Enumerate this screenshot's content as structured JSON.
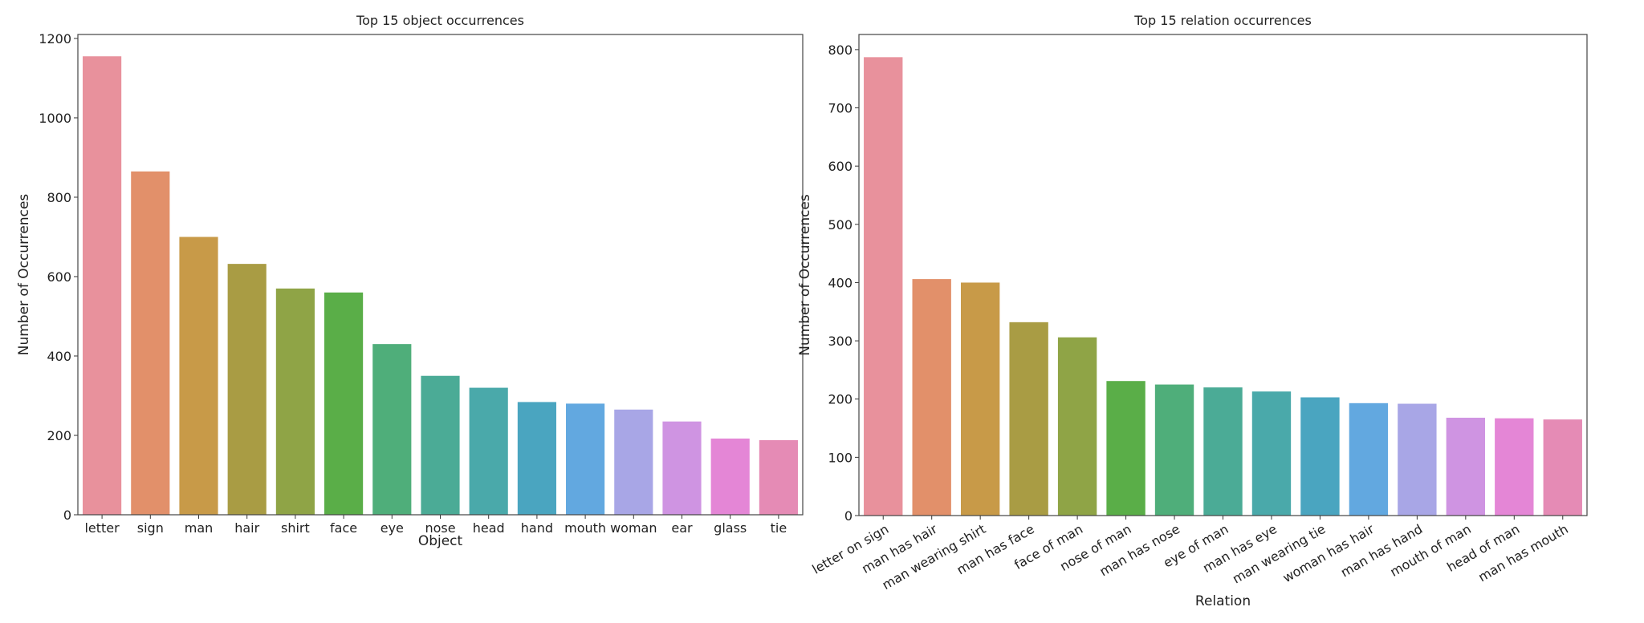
{
  "chart_data": [
    {
      "type": "bar",
      "title": "Top 15 object occurrences",
      "xlabel": "Object",
      "ylabel": "Number of Occurrences",
      "ylim": [
        0,
        1210
      ],
      "yticks": [
        0,
        200,
        400,
        600,
        800,
        1000,
        1200
      ],
      "grid": false,
      "categories": [
        "letter",
        "sign",
        "man",
        "hair",
        "shirt",
        "face",
        "eye",
        "nose",
        "head",
        "hand",
        "mouth",
        "woman",
        "ear",
        "glass",
        "tie"
      ],
      "values": [
        1155,
        865,
        700,
        632,
        570,
        560,
        430,
        350,
        320,
        284,
        280,
        265,
        235,
        192,
        188
      ],
      "label_rotation": 0
    },
    {
      "type": "bar",
      "title": "Top 15 relation occurrences",
      "xlabel": "Relation",
      "ylabel": "Number of Occurrences",
      "ylim": [
        0,
        826
      ],
      "yticks": [
        0,
        100,
        200,
        300,
        400,
        500,
        600,
        700,
        800
      ],
      "grid": false,
      "categories": [
        "letter on sign",
        "man has hair",
        "man wearing shirt",
        "man has face",
        "face of man",
        "nose of man",
        "man has nose",
        "eye of man",
        "man has eye",
        "man wearing tie",
        "woman has hair",
        "man has hand",
        "mouth of man",
        "head of man",
        "man has mouth"
      ],
      "values": [
        787,
        406,
        400,
        332,
        306,
        231,
        225,
        220,
        213,
        203,
        193,
        192,
        168,
        167,
        165
      ],
      "label_rotation": 30
    }
  ],
  "palette": [
    "#e8919c",
    "#e2906a",
    "#c89a48",
    "#a99c44",
    "#8fa446",
    "#5aae48",
    "#4fae7a",
    "#4bab96",
    "#4aa9aa",
    "#4aa5c0",
    "#62a8e0",
    "#a8a6e6",
    "#cf94e2",
    "#e486d6",
    "#e58bb5"
  ]
}
